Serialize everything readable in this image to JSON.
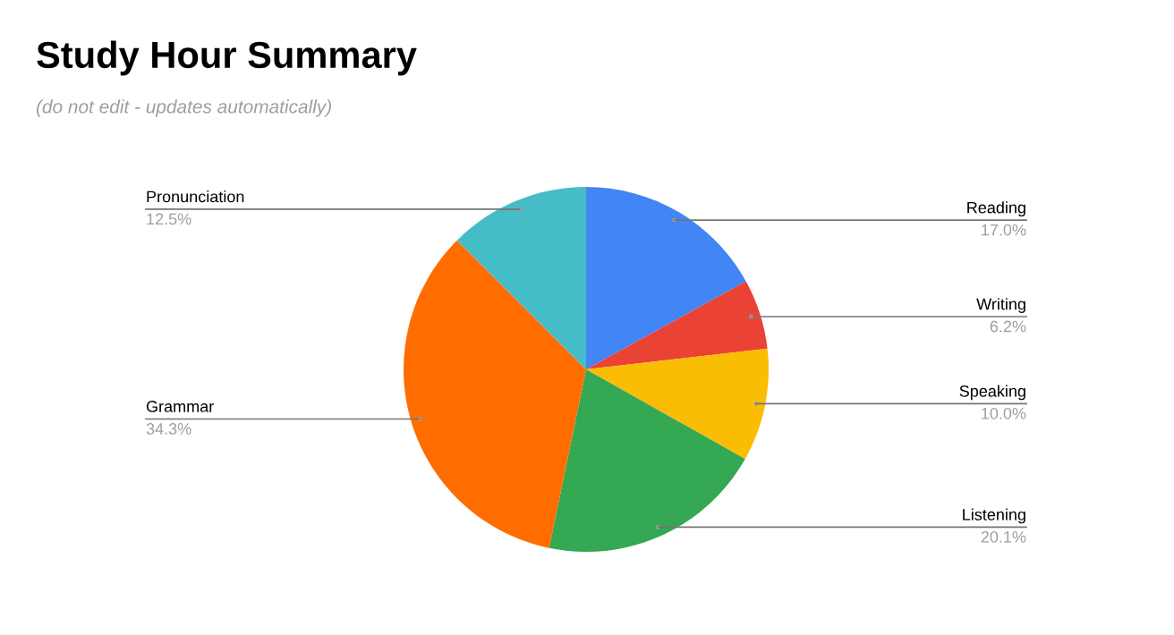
{
  "chart_data": {
    "type": "pie",
    "title": "Study Hour Summary",
    "subtitle": "(do not edit - updates automatically)",
    "categories": [
      "Reading",
      "Writing",
      "Speaking",
      "Listening",
      "Grammar",
      "Pronunciation"
    ],
    "values": [
      17.0,
      6.2,
      10.0,
      20.1,
      34.3,
      12.5
    ],
    "value_labels": [
      "17.0%",
      "6.2%",
      "10.0%",
      "20.1%",
      "34.3%",
      "12.5%"
    ],
    "colors": [
      "#4285f4",
      "#ea4335",
      "#fbbc04",
      "#34a853",
      "#ff6d01",
      "#46bdc6"
    ]
  }
}
